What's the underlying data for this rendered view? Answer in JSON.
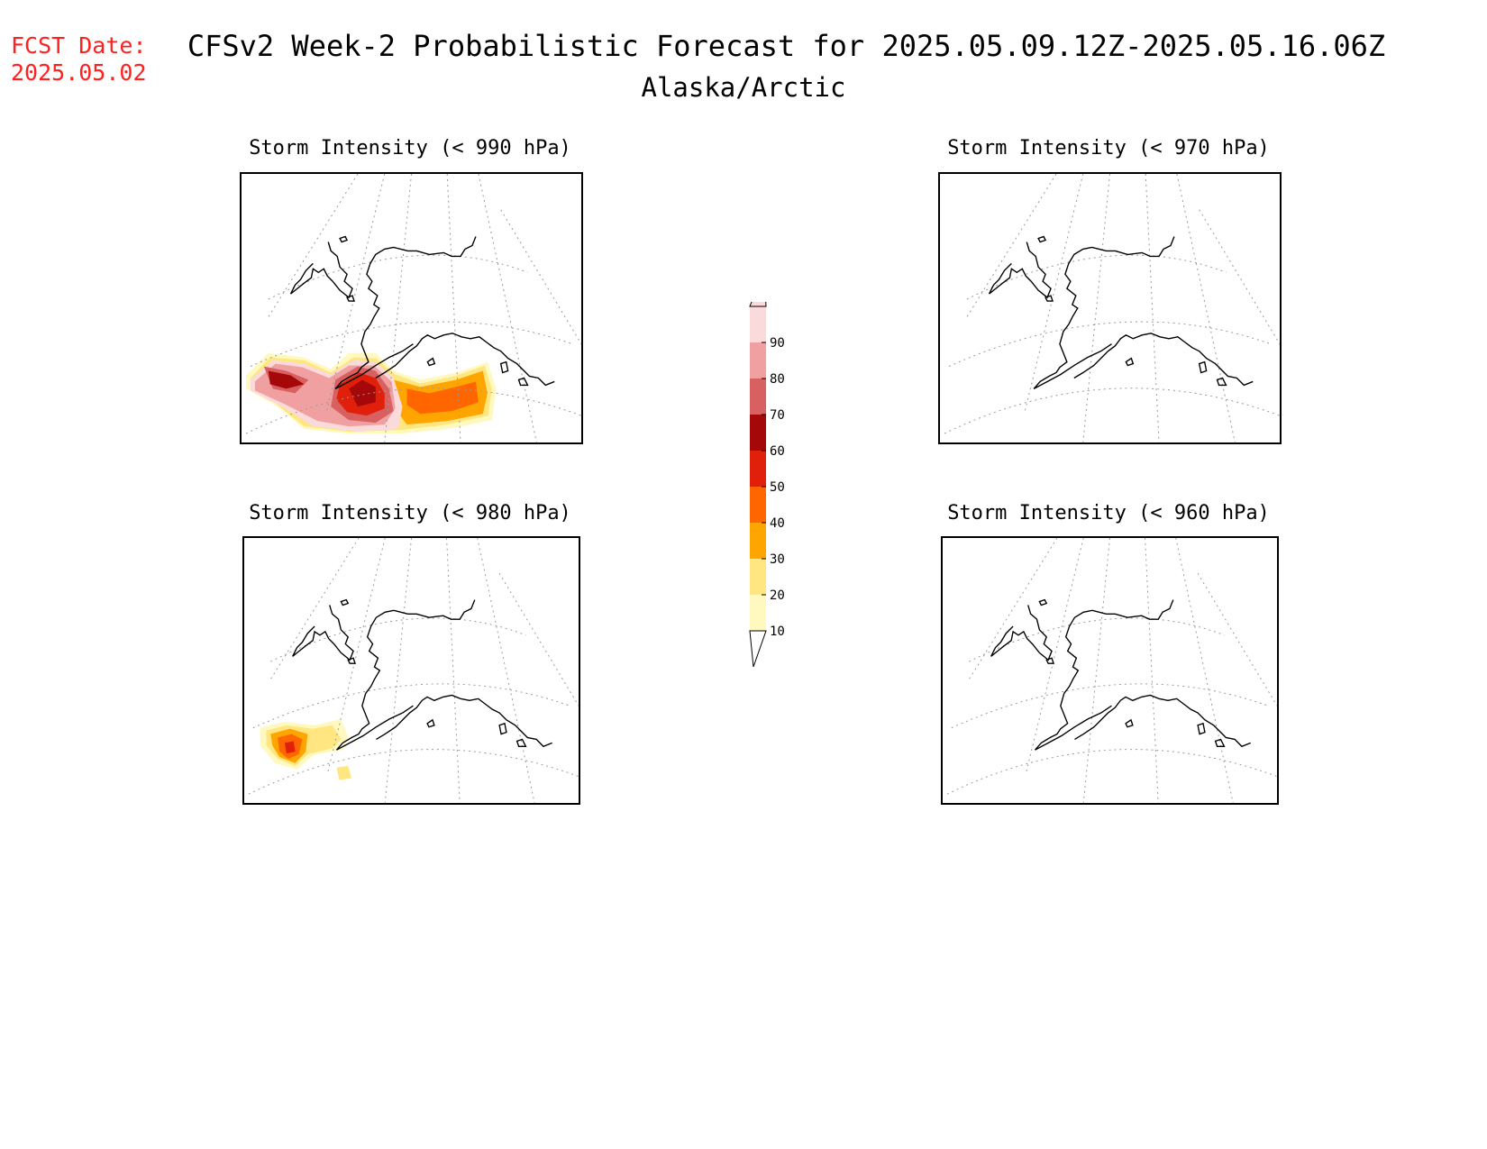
{
  "header": {
    "fcst_label": "FCST Date:",
    "fcst_date": "2025.05.02",
    "title": "CFSv2 Week-2 Probabilistic Forecast for 2025.05.09.12Z-2025.05.16.06Z",
    "region": "Alaska/Arctic"
  },
  "panels": [
    {
      "title": "Storm Intensity (< 990 hPa)",
      "has_shading": true
    },
    {
      "title": "Storm Intensity (< 970 hPa)",
      "has_shading": false
    },
    {
      "title": "Storm Intensity (< 980 hPa)",
      "has_shading": true
    },
    {
      "title": "Storm Intensity (< 960 hPa)",
      "has_shading": false
    }
  ],
  "colorbar": {
    "levels": [
      "10",
      "20",
      "30",
      "40",
      "50",
      "60",
      "70",
      "80",
      "90"
    ],
    "colors": [
      "#fff9c0",
      "#ffe680",
      "#ffa500",
      "#ff6600",
      "#e0200a",
      "#a50808",
      "#d96060",
      "#f0a0a0",
      "#fadada"
    ]
  }
}
